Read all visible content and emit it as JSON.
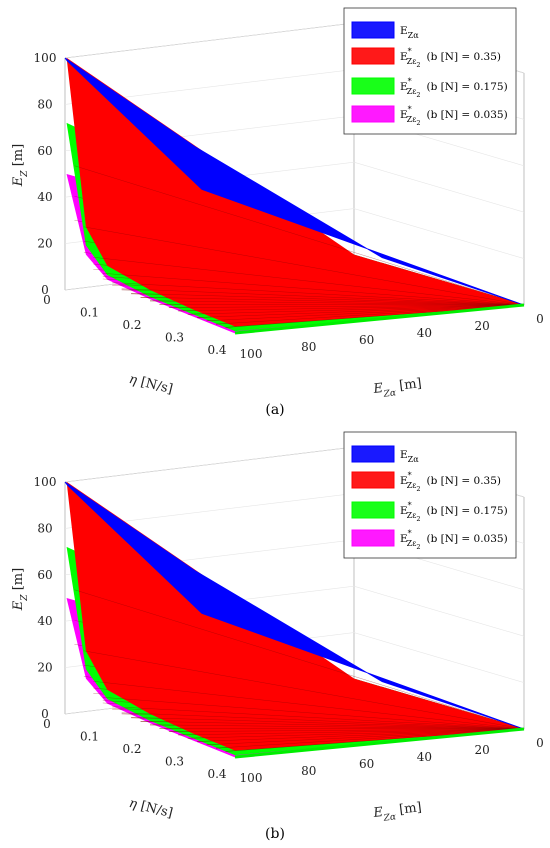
{
  "panels": [
    {
      "caption": "(a)",
      "chart_data": {
        "type": "surface-3d",
        "zlabel": "E_Z [m]",
        "xlabel": "E_Zα [m]",
        "ylabel": "η [N/s]",
        "zlim": [
          0,
          100
        ],
        "x_ticks": [
          0,
          20,
          40,
          60,
          80,
          100
        ],
        "y_ticks": [
          0,
          0.1,
          0.2,
          0.3,
          0.4
        ],
        "z_ticks": [
          0,
          20,
          40,
          60,
          80,
          100
        ],
        "grid": true,
        "legend_position": "top-right",
        "series": [
          {
            "name": "E_Zα",
            "color": "#0000ff",
            "surface": "plane z = E_Zα"
          },
          {
            "name": "E*_Zε2 (b [N] = 0.35)",
            "color": "#ff0000",
            "values_at_Ex100": [
              100,
              30,
              16,
              11,
              8,
              6
            ]
          },
          {
            "name": "E*_Zε2 (b [N] = 0.175)",
            "color": "#00ff00",
            "values_at_Ex100": [
              72,
              22,
              12,
              8,
              6,
              4
            ]
          },
          {
            "name": "E*_Zε2 (b [N] = 0.035)",
            "color": "#ff00ff",
            "values_at_Ex100": [
              50,
              18,
              10,
              7,
              5,
              3
            ]
          }
        ],
        "eta_samples": [
          0.005,
          0.05,
          0.1,
          0.2,
          0.3,
          0.4
        ]
      }
    },
    {
      "caption": "(b)",
      "chart_data": {
        "type": "surface-3d",
        "zlabel": "E_Z [m]",
        "xlabel": "E_Zα [m]",
        "ylabel": "η [N/s]",
        "zlim": [
          0,
          100
        ],
        "x_ticks": [
          0,
          20,
          40,
          60,
          80,
          100
        ],
        "y_ticks": [
          0,
          0.1,
          0.2,
          0.3,
          0.4
        ],
        "z_ticks": [
          0,
          20,
          40,
          60,
          80,
          100
        ],
        "grid": true,
        "legend_position": "top-right",
        "series": [
          {
            "name": "E_Zα",
            "color": "#0000ff",
            "surface": "plane z = E_Zα"
          },
          {
            "name": "E*_Zε2 (b [N] = 0.35)",
            "color": "#ff0000",
            "values_at_Ex100": [
              100,
              30,
              16,
              11,
              8,
              6
            ]
          },
          {
            "name": "E*_Zε2 (b [N] = 0.175)",
            "color": "#00ff00",
            "values_at_Ex100": [
              72,
              22,
              12,
              8,
              6,
              4
            ]
          },
          {
            "name": "E*_Zε2 (b [N] = 0.035)",
            "color": "#ff00ff",
            "values_at_Ex100": [
              50,
              18,
              10,
              7,
              5,
              3
            ]
          }
        ],
        "eta_samples": [
          0.005,
          0.05,
          0.1,
          0.2,
          0.3,
          0.4
        ]
      }
    }
  ],
  "legend_labels": [
    {
      "main": "E",
      "sub": "Zα",
      "sup": "",
      "subsub": "",
      "tail": ""
    },
    {
      "main": "E",
      "sub": "Zε",
      "sup": "*",
      "subsub": "2",
      "tail": "(b [N] = 0.35)"
    },
    {
      "main": "E",
      "sub": "Zε",
      "sup": "*",
      "subsub": "2",
      "tail": "(b [N] = 0.175)"
    },
    {
      "main": "E",
      "sub": "Zε",
      "sup": "*",
      "subsub": "2",
      "tail": "(b [N] = 0.035)"
    }
  ],
  "axis_text": {
    "z": {
      "main": "E",
      "sub": "Z",
      "unit": " [m]"
    },
    "y": {
      "main": "η",
      "unit": " [N/s]"
    },
    "x": {
      "main": "E",
      "sub": "Zα",
      "unit": " [m]"
    }
  }
}
